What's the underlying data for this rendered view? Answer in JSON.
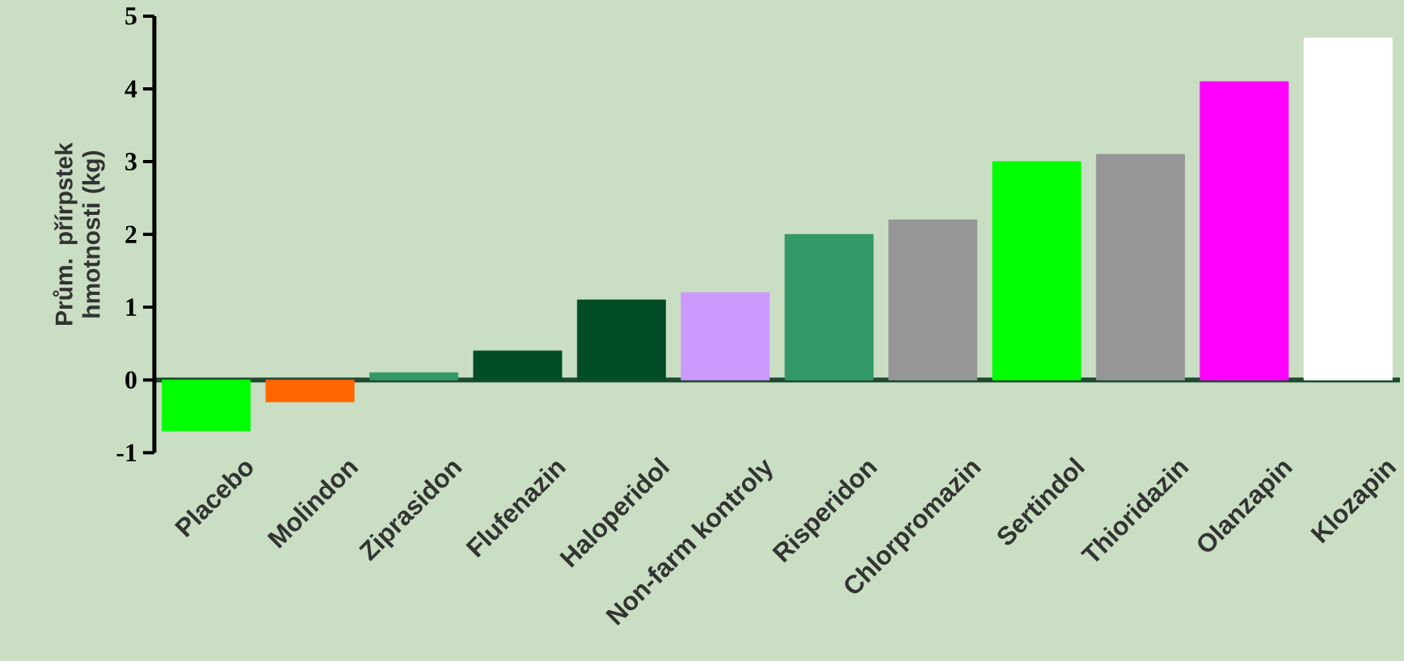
{
  "chart_data": {
    "type": "bar",
    "ylabel": "Prům. přírpstek hmotnosti (kg)",
    "categories": [
      "Placebo",
      "Molindon",
      "Ziprasidon",
      "Flufenazin",
      "Haloperidol",
      "Non-farm kontroly",
      "Risperidon",
      "Chlorpromazin",
      "Sertindol",
      "Thioridazin",
      "Olanzapin",
      "Klozapin"
    ],
    "values": [
      -0.7,
      -0.3,
      0.1,
      0.4,
      1.1,
      1.2,
      2.0,
      2.2,
      3.0,
      3.1,
      4.1,
      4.7
    ],
    "colors": [
      "#00ff00",
      "#ff6600",
      "#339966",
      "#004d26",
      "#004d26",
      "#cc99ff",
      "#339966",
      "#969696",
      "#00ff00",
      "#969696",
      "#ff00ff",
      "#ffffff"
    ],
    "ylim": [
      -1,
      5
    ],
    "yticks": [
      -1,
      0,
      1,
      2,
      3,
      4,
      5
    ]
  }
}
